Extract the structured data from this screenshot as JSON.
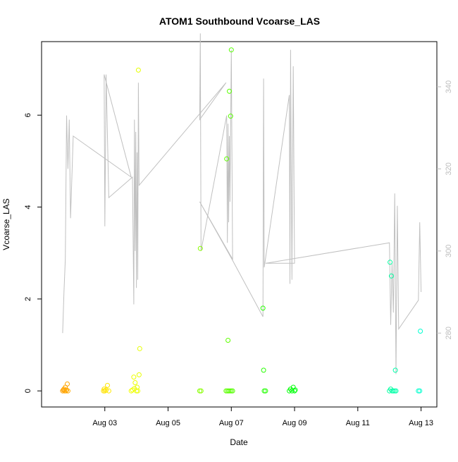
{
  "chart_data": {
    "type": "scatter",
    "title": "ATOM1 Southbound Vcoarse_LAS",
    "xlabel": "Date",
    "ylabel": "Vcoarse_LAS",
    "xlim": [
      "2014-08-01T00:00",
      "2014-08-13T12:00"
    ],
    "ylim": [
      -0.35,
      7.6
    ],
    "y2lim": [
      262,
      351
    ],
    "x_ticks": [
      {
        "t": "2014-08-03T00:00",
        "label": "Aug 03"
      },
      {
        "t": "2014-08-05T00:00",
        "label": "Aug 05"
      },
      {
        "t": "2014-08-07T00:00",
        "label": "Aug 07"
      },
      {
        "t": "2014-08-09T00:00",
        "label": "Aug 09"
      },
      {
        "t": "2014-08-11T00:00",
        "label": "Aug 11"
      },
      {
        "t": "2014-08-13T00:00",
        "label": "Aug 13"
      }
    ],
    "y_ticks": [
      0,
      2,
      4,
      6
    ],
    "y2_ticks": [
      280,
      300,
      320,
      340
    ],
    "grid": false,
    "series": [
      {
        "kind": "points",
        "points": [
          [
            "2014-08-01T16:00",
            0.0
          ],
          [
            "2014-08-01T16:30",
            0.02
          ],
          [
            "2014-08-01T17:00",
            0.04
          ],
          [
            "2014-08-01T17:30",
            0.0
          ],
          [
            "2014-08-01T18:00",
            0.08
          ],
          [
            "2014-08-01T18:30",
            0.0
          ],
          [
            "2014-08-01T19:00",
            0.02
          ],
          [
            "2014-08-01T19:30",
            0.15
          ],
          [
            "2014-08-01T20:00",
            0.0
          ],
          [
            "2014-08-02T23:00",
            0.0
          ],
          [
            "2014-08-02T23:30",
            0.04
          ],
          [
            "2014-08-03T00:00",
            0.0
          ],
          [
            "2014-08-03T01:00",
            0.02
          ],
          [
            "2014-08-03T02:00",
            0.12
          ],
          [
            "2014-08-03T03:00",
            0.0
          ],
          [
            "2014-08-03T20:00",
            0.0
          ],
          [
            "2014-08-03T21:00",
            0.02
          ],
          [
            "2014-08-03T22:00",
            0.3
          ],
          [
            "2014-08-03T22:30",
            0.05
          ],
          [
            "2014-08-03T23:00",
            0.18
          ],
          [
            "2014-08-04T00:00",
            0.0
          ],
          [
            "2014-08-04T00:30",
            0.08
          ],
          [
            "2014-08-04T01:00",
            0.0
          ],
          [
            "2014-08-04T02:00",
            0.35
          ],
          [
            "2014-08-04T02:30",
            0.92
          ],
          [
            "2014-08-04T01:30",
            6.98
          ],
          [
            "2014-08-06T00:00",
            0.0
          ],
          [
            "2014-08-06T01:00",
            0.0
          ],
          [
            "2014-08-06T00:30",
            3.1
          ],
          [
            "2014-08-06T20:00",
            0.0
          ],
          [
            "2014-08-06T21:00",
            0.0
          ],
          [
            "2014-08-06T22:00",
            0.0
          ],
          [
            "2014-08-06T23:00",
            0.0
          ],
          [
            "2014-08-07T00:00",
            0.0
          ],
          [
            "2014-08-07T01:00",
            0.0
          ],
          [
            "2014-08-06T20:30",
            5.05
          ],
          [
            "2014-08-06T21:30",
            1.1
          ],
          [
            "2014-08-06T22:30",
            6.52
          ],
          [
            "2014-08-06T23:30",
            5.98
          ],
          [
            "2014-08-07T00:00",
            7.42
          ],
          [
            "2014-08-08T00:00",
            1.8
          ],
          [
            "2014-08-08T00:30",
            0.45
          ],
          [
            "2014-08-08T01:00",
            0.0
          ],
          [
            "2014-08-08T02:00",
            0.0
          ],
          [
            "2014-08-08T20:00",
            0.0
          ],
          [
            "2014-08-08T21:00",
            0.04
          ],
          [
            "2014-08-08T22:00",
            0.0
          ],
          [
            "2014-08-08T23:00",
            0.08
          ],
          [
            "2014-08-09T00:00",
            0.0
          ],
          [
            "2014-08-09T00:30",
            0.02
          ],
          [
            "2014-08-12T00:00",
            0.0
          ],
          [
            "2014-08-12T01:00",
            0.04
          ],
          [
            "2014-08-12T02:00",
            0.0
          ],
          [
            "2014-08-12T03:00",
            0.0
          ],
          [
            "2014-08-12T04:00",
            0.0
          ],
          [
            "2014-08-12T05:00",
            0.0
          ],
          [
            "2014-08-12T00:30",
            2.8
          ],
          [
            "2014-08-12T01:30",
            2.5
          ],
          [
            "2014-08-12T04:30",
            0.45
          ],
          [
            "2014-08-12T22:00",
            0.0
          ],
          [
            "2014-08-12T23:00",
            0.0
          ],
          [
            "2014-08-12T23:30",
            1.3
          ]
        ]
      },
      {
        "kind": "line",
        "axis": "right",
        "color": "#c0c0c0",
        "points": [
          [
            "2014-08-01T16:00",
            280
          ],
          [
            "2014-08-01T17:00",
            290
          ],
          [
            "2014-08-01T18:00",
            298
          ],
          [
            "2014-08-01T19:00",
            333
          ],
          [
            "2014-08-01T20:00",
            320
          ],
          [
            "2014-08-01T21:00",
            332
          ],
          [
            "2014-08-01T22:00",
            308
          ],
          [
            "2014-08-02T00:00",
            328
          ],
          [
            "2014-08-03T20:00",
            318
          ],
          [
            "2014-08-02T23:30",
            343
          ],
          [
            "2014-08-03T00:00",
            306
          ],
          [
            "2014-08-03T01:00",
            343
          ],
          [
            "2014-08-03T03:00",
            313
          ],
          [
            "2014-08-03T21:00",
            318
          ],
          [
            "2014-08-03T22:00",
            287
          ],
          [
            "2014-08-03T22:30",
            332
          ],
          [
            "2014-08-03T23:00",
            300
          ],
          [
            "2014-08-03T23:30",
            329
          ],
          [
            "2014-08-04T00:00",
            291
          ],
          [
            "2014-08-04T00:30",
            324
          ],
          [
            "2014-08-04T01:00",
            293
          ],
          [
            "2014-08-04T01:30",
            341
          ],
          [
            "2014-08-04T02:00",
            316
          ],
          [
            "2014-08-06T20:00",
            341
          ],
          [
            "2014-08-06T00:00",
            332
          ],
          [
            "2014-08-06T00:30",
            353
          ],
          [
            "2014-08-06T01:00",
            300
          ],
          [
            "2014-08-06T20:30",
            333
          ],
          [
            "2014-08-06T21:00",
            302
          ],
          [
            "2014-08-06T21:30",
            331
          ],
          [
            "2014-08-06T22:00",
            307
          ],
          [
            "2014-08-06T22:30",
            328
          ],
          [
            "2014-08-06T23:00",
            312
          ],
          [
            "2014-08-07T00:00",
            349
          ],
          [
            "2014-08-07T01:00",
            298
          ],
          [
            "2014-08-06T00:00",
            312
          ],
          [
            "2014-08-07T00:30",
            298
          ],
          [
            "2014-08-08T00:00",
            284
          ],
          [
            "2014-08-08T00:30",
            342
          ],
          [
            "2014-08-08T01:00",
            296
          ],
          [
            "2014-08-08T20:00",
            338
          ],
          [
            "2014-08-08T20:30",
            292
          ],
          [
            "2014-08-08T21:00",
            349
          ],
          [
            "2014-08-08T22:00",
            293
          ],
          [
            "2014-08-08T23:00",
            345
          ],
          [
            "2014-08-09T00:00",
            297
          ],
          [
            "2014-08-08T02:00",
            297
          ],
          [
            "2014-08-12T00:00",
            302
          ],
          [
            "2014-08-12T01:00",
            282
          ],
          [
            "2014-08-12T02:00",
            297
          ],
          [
            "2014-08-12T03:00",
            285
          ],
          [
            "2014-08-12T04:00",
            314
          ],
          [
            "2014-08-12T05:00",
            270
          ],
          [
            "2014-08-12T06:00",
            311
          ],
          [
            "2014-08-12T07:00",
            281
          ],
          [
            "2014-08-12T22:00",
            288
          ],
          [
            "2014-08-12T23:00",
            307
          ],
          [
            "2014-08-13T00:00",
            290
          ]
        ]
      }
    ]
  }
}
